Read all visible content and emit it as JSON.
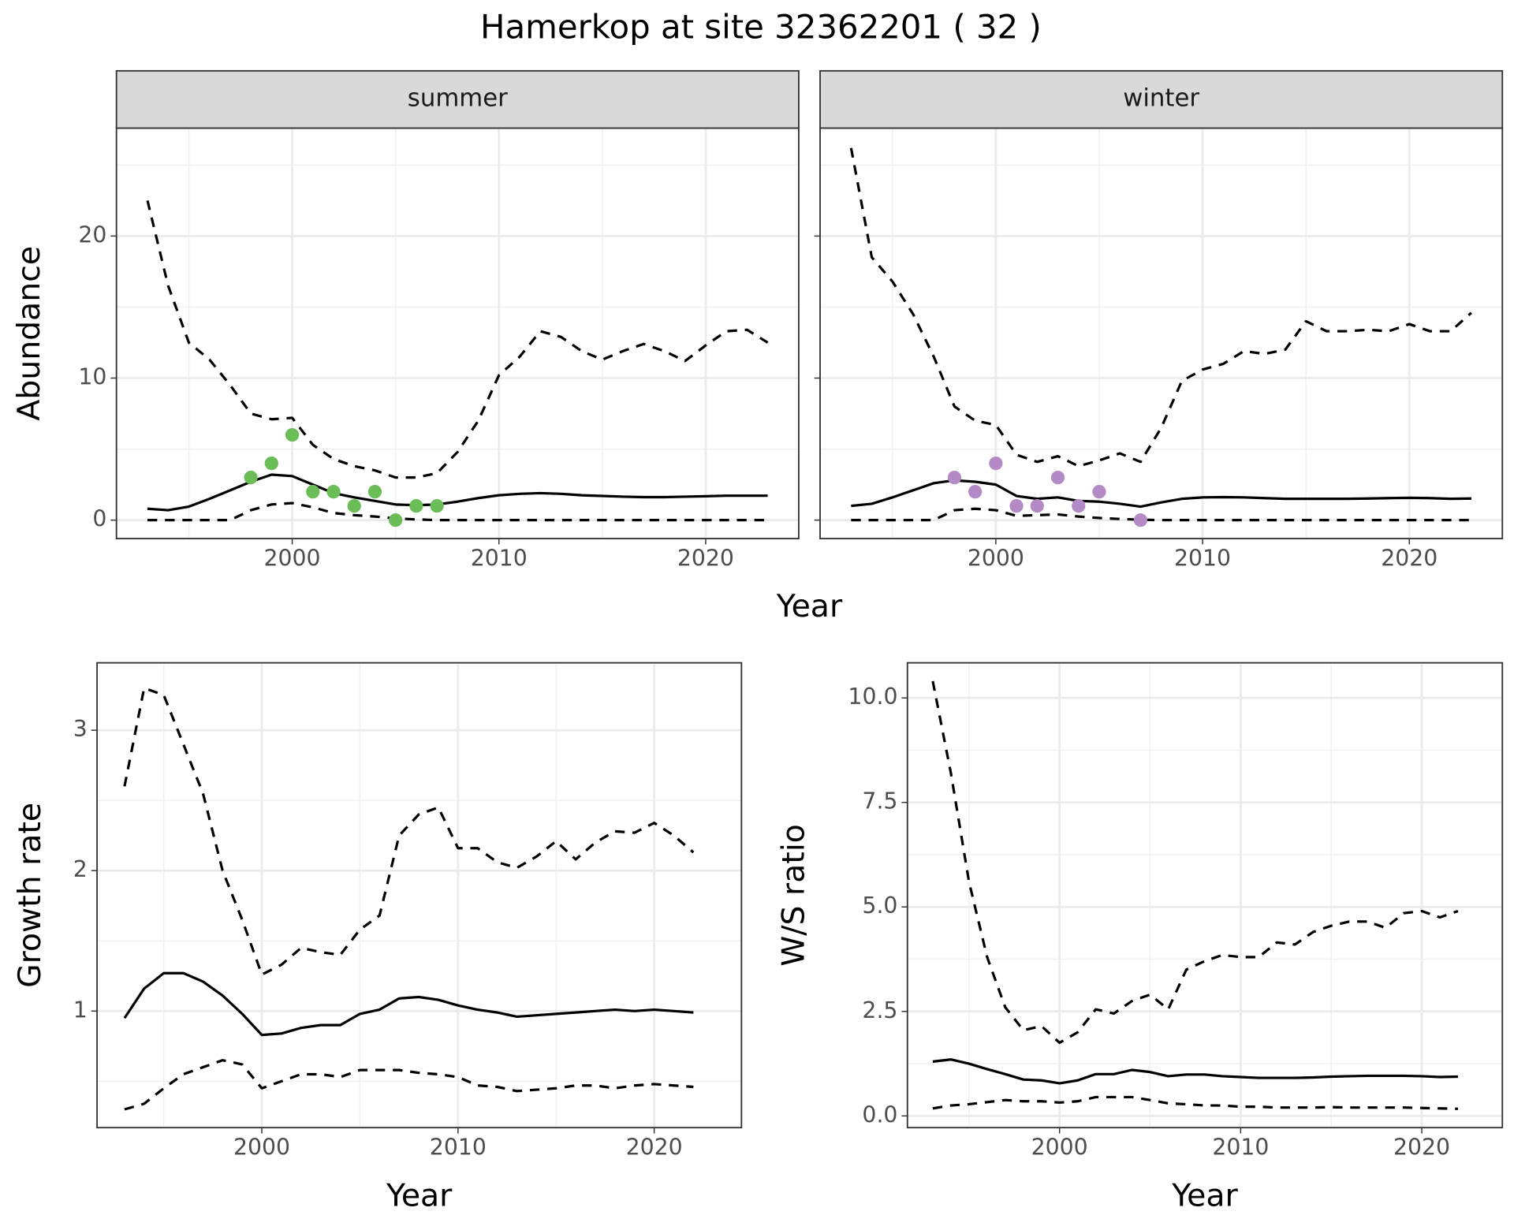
{
  "title": "Hamerkop at site 32362201 ( 32 )",
  "chart_data": [
    {
      "type": "line",
      "facet": "summer",
      "xlabel": "Year",
      "ylabel": "Abundance",
      "x": [
        1993,
        1994,
        1995,
        1996,
        1997,
        1998,
        1999,
        2000,
        2001,
        2002,
        2003,
        2004,
        2005,
        2006,
        2007,
        2008,
        2009,
        2010,
        2011,
        2012,
        2013,
        2014,
        2015,
        2016,
        2017,
        2018,
        2019,
        2020,
        2021,
        2022,
        2023
      ],
      "xlim": [
        1991.5,
        2024.5
      ],
      "xticks": [
        2000,
        2010,
        2020
      ],
      "xminor": [
        1995,
        2005,
        2015
      ],
      "ylim": [
        -1.3,
        27.6
      ],
      "yticks": [
        0,
        10,
        20
      ],
      "yminor": [
        5,
        15,
        25
      ],
      "show_yticklabels": true,
      "grid": true,
      "series": [
        {
          "line": "solid",
          "color": "#000000",
          "values": [
            0.8,
            0.7,
            0.95,
            1.5,
            2.1,
            2.7,
            3.2,
            3.1,
            2.5,
            1.9,
            1.6,
            1.35,
            1.1,
            1.05,
            1.1,
            1.3,
            1.55,
            1.75,
            1.85,
            1.9,
            1.85,
            1.75,
            1.7,
            1.65,
            1.62,
            1.62,
            1.65,
            1.68,
            1.72,
            1.72,
            1.72
          ]
        },
        {
          "line": "dashed",
          "color": "#000000",
          "values": [
            22.5,
            16.5,
            12.5,
            11.3,
            9.5,
            7.5,
            7.1,
            7.2,
            5.3,
            4.3,
            3.8,
            3.5,
            3.0,
            3.0,
            3.3,
            4.8,
            7.0,
            10.2,
            11.5,
            13.3,
            12.9,
            11.9,
            11.3,
            11.9,
            12.4,
            11.9,
            11.2,
            12.3,
            13.3,
            13.4,
            12.5
          ]
        },
        {
          "line": "dashed",
          "color": "#000000",
          "values": [
            0,
            0,
            0,
            0,
            0,
            0.7,
            1.1,
            1.2,
            0.9,
            0.5,
            0.35,
            0.25,
            0.12,
            0.05,
            0,
            0,
            0,
            0,
            0,
            0,
            0,
            0,
            0,
            0,
            0,
            0,
            0,
            0,
            0,
            0,
            0
          ]
        },
        {
          "line": "none",
          "marker": true,
          "color": "#6bbd57",
          "values": [
            null,
            null,
            null,
            null,
            null,
            3,
            4,
            6,
            2,
            2,
            1,
            2,
            0,
            1,
            1,
            null,
            null,
            null,
            null,
            null,
            null,
            null,
            null,
            null,
            null,
            null,
            null,
            null,
            null,
            null,
            null
          ]
        }
      ]
    },
    {
      "type": "line",
      "facet": "winter",
      "x": [
        1993,
        1994,
        1995,
        1996,
        1997,
        1998,
        1999,
        2000,
        2001,
        2002,
        2003,
        2004,
        2005,
        2006,
        2007,
        2008,
        2009,
        2010,
        2011,
        2012,
        2013,
        2014,
        2015,
        2016,
        2017,
        2018,
        2019,
        2020,
        2021,
        2022,
        2023
      ],
      "xlim": [
        1991.5,
        2024.5
      ],
      "xticks": [
        2000,
        2010,
        2020
      ],
      "xminor": [
        1995,
        2005,
        2015
      ],
      "ylim": [
        -1.3,
        27.6
      ],
      "yticks": [
        0,
        10,
        20
      ],
      "yminor": [
        5,
        15,
        25
      ],
      "show_yticklabels": false,
      "grid": true,
      "series": [
        {
          "line": "solid",
          "color": "#000000",
          "values": [
            1.0,
            1.15,
            1.6,
            2.1,
            2.6,
            2.8,
            2.7,
            2.5,
            1.7,
            1.5,
            1.6,
            1.35,
            1.3,
            1.15,
            0.95,
            1.25,
            1.5,
            1.6,
            1.62,
            1.6,
            1.55,
            1.5,
            1.5,
            1.5,
            1.5,
            1.52,
            1.55,
            1.57,
            1.55,
            1.5,
            1.52
          ]
        },
        {
          "line": "dashed",
          "color": "#000000",
          "values": [
            26.2,
            18.5,
            16.8,
            14.5,
            11.5,
            8.0,
            7.0,
            6.7,
            4.6,
            4.1,
            4.5,
            3.8,
            4.2,
            4.7,
            4.1,
            6.5,
            9.8,
            10.6,
            11.0,
            11.9,
            11.7,
            12.0,
            14.0,
            13.3,
            13.3,
            13.4,
            13.3,
            13.8,
            13.3,
            13.3,
            14.6
          ]
        },
        {
          "line": "dashed",
          "color": "#000000",
          "values": [
            0,
            0,
            0,
            0,
            0,
            0.7,
            0.8,
            0.7,
            0.3,
            0.35,
            0.4,
            0.25,
            0.15,
            0.08,
            0.03,
            0,
            0,
            0,
            0,
            0,
            0,
            0,
            0,
            0,
            0,
            0,
            0,
            0,
            0,
            0,
            0
          ]
        },
        {
          "line": "none",
          "marker": true,
          "color": "#b48ac6",
          "values": [
            null,
            null,
            null,
            null,
            null,
            3,
            2,
            4,
            1,
            1,
            3,
            1,
            2,
            null,
            0,
            null,
            null,
            null,
            null,
            null,
            null,
            null,
            null,
            null,
            null,
            null,
            null,
            null,
            null,
            null,
            null
          ]
        }
      ]
    },
    {
      "type": "line",
      "xlabel": "Year",
      "ylabel": "Growth rate",
      "x": [
        1993,
        1994,
        1995,
        1996,
        1997,
        1998,
        1999,
        2000,
        2001,
        2002,
        2003,
        2004,
        2005,
        2006,
        2007,
        2008,
        2009,
        2010,
        2011,
        2012,
        2013,
        2014,
        2015,
        2016,
        2017,
        2018,
        2019,
        2020,
        2021,
        2022
      ],
      "xlim": [
        1991.6,
        2024.45
      ],
      "xticks": [
        2000,
        2010,
        2020
      ],
      "xminor": [
        1995,
        2005,
        2015
      ],
      "ylim": [
        0.17,
        3.48
      ],
      "yticks": [
        1,
        2,
        3
      ],
      "yminor": [
        0.5,
        1.5,
        2.5
      ],
      "show_yticklabels": true,
      "grid": true,
      "series": [
        {
          "line": "solid",
          "color": "#000000",
          "values": [
            0.95,
            1.16,
            1.27,
            1.27,
            1.21,
            1.11,
            0.98,
            0.83,
            0.84,
            0.88,
            0.9,
            0.9,
            0.98,
            1.01,
            1.09,
            1.1,
            1.08,
            1.04,
            1.01,
            0.99,
            0.96,
            0.97,
            0.98,
            0.99,
            1.0,
            1.01,
            1.0,
            1.01,
            1.0,
            0.99
          ]
        },
        {
          "line": "dashed",
          "color": "#000000",
          "values": [
            2.6,
            3.3,
            3.25,
            2.9,
            2.55,
            2.0,
            1.65,
            1.26,
            1.33,
            1.45,
            1.42,
            1.4,
            1.58,
            1.68,
            2.25,
            2.4,
            2.45,
            2.16,
            2.16,
            2.06,
            2.02,
            2.1,
            2.21,
            2.08,
            2.2,
            2.28,
            2.27,
            2.34,
            2.25,
            2.13
          ]
        },
        {
          "line": "dashed",
          "color": "#000000",
          "values": [
            0.3,
            0.34,
            0.45,
            0.55,
            0.6,
            0.65,
            0.62,
            0.45,
            0.5,
            0.55,
            0.55,
            0.53,
            0.58,
            0.58,
            0.58,
            0.56,
            0.55,
            0.53,
            0.47,
            0.46,
            0.43,
            0.44,
            0.45,
            0.47,
            0.47,
            0.45,
            0.47,
            0.48,
            0.47,
            0.46
          ]
        }
      ]
    },
    {
      "type": "line",
      "xlabel": "Year",
      "ylabel": "W/S ratio",
      "x": [
        1993,
        1994,
        1995,
        1996,
        1997,
        1998,
        1999,
        2000,
        2001,
        2002,
        2003,
        2004,
        2005,
        2006,
        2007,
        2008,
        2009,
        2010,
        2011,
        2012,
        2013,
        2014,
        2015,
        2016,
        2017,
        2018,
        2019,
        2020,
        2021,
        2022
      ],
      "xlim": [
        1991.6,
        2024.45
      ],
      "xticks": [
        2000,
        2010,
        2020
      ],
      "xminor": [
        1995,
        2005,
        2015
      ],
      "ylim": [
        -0.28,
        10.84
      ],
      "yticks": [
        {
          "value": 0,
          "label": "0.0"
        },
        2.5,
        {
          "value": 5,
          "label": "5.0"
        },
        7.5,
        {
          "value": 10,
          "label": "10.0"
        }
      ],
      "yminor": [
        1.25,
        3.75,
        6.25,
        8.75
      ],
      "show_yticklabels": true,
      "grid": true,
      "series": [
        {
          "line": "solid",
          "color": "#000000",
          "values": [
            1.3,
            1.35,
            1.25,
            1.12,
            1.0,
            0.87,
            0.85,
            0.78,
            0.85,
            1.0,
            1.0,
            1.1,
            1.05,
            0.95,
            0.99,
            0.99,
            0.95,
            0.93,
            0.91,
            0.91,
            0.91,
            0.92,
            0.94,
            0.95,
            0.96,
            0.96,
            0.96,
            0.95,
            0.93,
            0.94
          ]
        },
        {
          "line": "dashed",
          "color": "#000000",
          "values": [
            10.4,
            8.2,
            5.6,
            3.8,
            2.6,
            2.05,
            2.15,
            1.75,
            2.0,
            2.55,
            2.45,
            2.75,
            2.9,
            2.55,
            3.5,
            3.7,
            3.85,
            3.8,
            3.8,
            4.15,
            4.1,
            4.4,
            4.55,
            4.65,
            4.65,
            4.5,
            4.85,
            4.9,
            4.75,
            4.9
          ]
        },
        {
          "line": "dashed",
          "color": "#000000",
          "values": [
            0.18,
            0.25,
            0.28,
            0.33,
            0.38,
            0.35,
            0.35,
            0.32,
            0.35,
            0.45,
            0.45,
            0.45,
            0.38,
            0.3,
            0.28,
            0.25,
            0.25,
            0.22,
            0.22,
            0.2,
            0.2,
            0.2,
            0.21,
            0.2,
            0.2,
            0.2,
            0.2,
            0.19,
            0.18,
            0.17
          ]
        }
      ]
    }
  ]
}
